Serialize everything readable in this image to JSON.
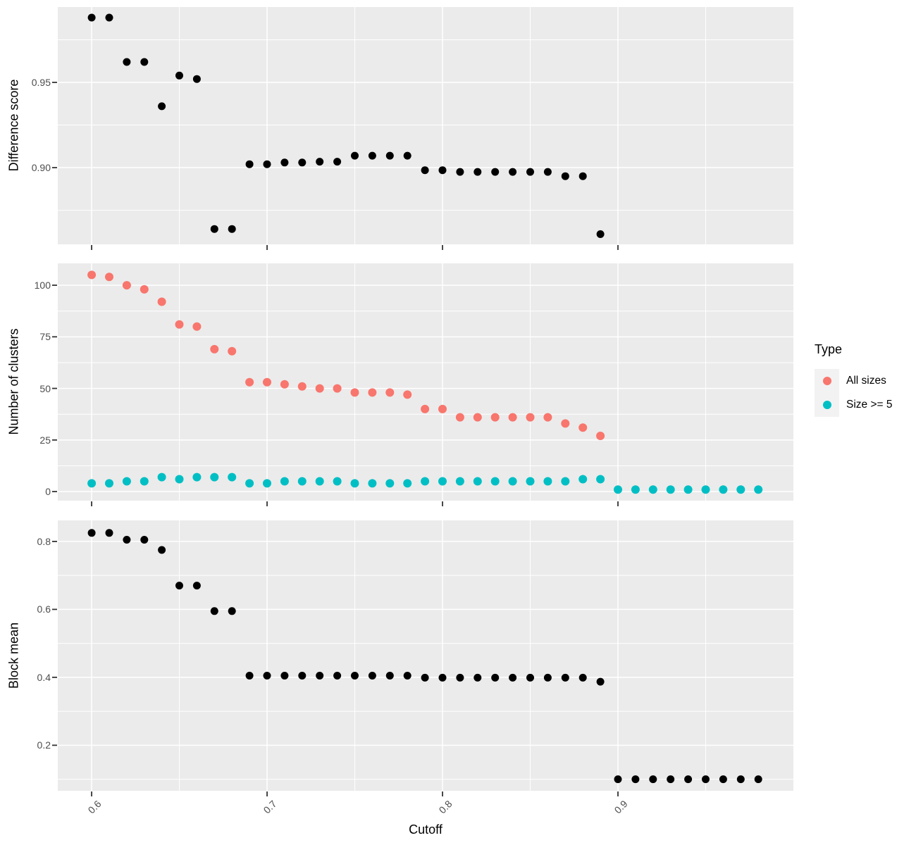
{
  "figure": {
    "xlabel": "Cutoff",
    "xlim": [
      0.5807,
      1.0
    ],
    "x_major_ticks": [
      0.6,
      0.7,
      0.8,
      0.9
    ],
    "x_tick_labels": [
      "0.6",
      "0.7",
      "0.8",
      "0.9"
    ],
    "x_minor_ticks": [
      0.65,
      0.75,
      0.85,
      0.95
    ]
  },
  "legend": {
    "title": "Type",
    "items": [
      {
        "label": "All sizes",
        "color": "#F8766D"
      },
      {
        "label": "Size >= 5",
        "color": "#00BFC4"
      }
    ]
  },
  "colors": {
    "panel_background": "#EBEBEB",
    "gridline": "#FFFFFF",
    "tick_text": "#4D4D4D",
    "axis_title": "#000000",
    "tick_mark": "#333333",
    "point_black": "#000000"
  },
  "chart_data": [
    {
      "type": "scatter",
      "panel": "top",
      "ylabel": "Difference score",
      "ylim": [
        0.855,
        0.9942
      ],
      "y_major_ticks": [
        0.9,
        0.95
      ],
      "y_tick_labels": [
        "0.90",
        "0.95"
      ],
      "y_minor_ticks": [
        0.875,
        0.925,
        0.975
      ],
      "grid": true,
      "legend_position": "none",
      "series": [
        {
          "name": "Difference score",
          "color": "#000000",
          "x": [
            0.6,
            0.61,
            0.62,
            0.63,
            0.64,
            0.65,
            0.66,
            0.67,
            0.68,
            0.69,
            0.7,
            0.71,
            0.72,
            0.73,
            0.74,
            0.75,
            0.76,
            0.77,
            0.78,
            0.79,
            0.8,
            0.81,
            0.82,
            0.83,
            0.84,
            0.85,
            0.86,
            0.87,
            0.88,
            0.89
          ],
          "y": [
            0.988,
            0.988,
            0.962,
            0.962,
            0.936,
            0.954,
            0.952,
            0.864,
            0.864,
            0.902,
            0.902,
            0.903,
            0.903,
            0.9035,
            0.9035,
            0.907,
            0.907,
            0.907,
            0.907,
            0.8985,
            0.8985,
            0.8975,
            0.8975,
            0.8975,
            0.8975,
            0.8975,
            0.8975,
            0.895,
            0.895,
            0.861
          ]
        }
      ]
    },
    {
      "type": "scatter",
      "panel": "middle",
      "ylabel": "Number of clusters",
      "ylim": [
        -4.4,
        110.6
      ],
      "y_major_ticks": [
        0,
        25,
        50,
        75,
        100
      ],
      "y_tick_labels": [
        "0",
        "25",
        "50",
        "75",
        "100"
      ],
      "y_minor_ticks": [
        12.5,
        37.5,
        62.5,
        87.5
      ],
      "grid": true,
      "legend_position": "right",
      "series": [
        {
          "name": "All sizes",
          "color": "#F8766D",
          "x": [
            0.6,
            0.61,
            0.62,
            0.63,
            0.64,
            0.65,
            0.66,
            0.67,
            0.68,
            0.69,
            0.7,
            0.71,
            0.72,
            0.73,
            0.74,
            0.75,
            0.76,
            0.77,
            0.78,
            0.79,
            0.8,
            0.81,
            0.82,
            0.83,
            0.84,
            0.85,
            0.86,
            0.87,
            0.88,
            0.89
          ],
          "y": [
            105,
            104,
            100,
            98,
            92,
            81,
            80,
            69,
            68,
            53,
            53,
            52,
            51,
            50,
            50,
            48,
            48,
            48,
            47,
            40,
            40,
            36,
            36,
            36,
            36,
            36,
            36,
            33,
            31,
            27
          ]
        },
        {
          "name": "Size >= 5",
          "color": "#00BFC4",
          "x": [
            0.6,
            0.61,
            0.62,
            0.63,
            0.64,
            0.65,
            0.66,
            0.67,
            0.68,
            0.69,
            0.7,
            0.71,
            0.72,
            0.73,
            0.74,
            0.75,
            0.76,
            0.77,
            0.78,
            0.79,
            0.8,
            0.81,
            0.82,
            0.83,
            0.84,
            0.85,
            0.86,
            0.87,
            0.88,
            0.89,
            0.9,
            0.91,
            0.92,
            0.93,
            0.94,
            0.95,
            0.96,
            0.97,
            0.98
          ],
          "y": [
            4,
            4,
            5,
            5,
            7,
            6,
            7,
            7,
            7,
            4,
            4,
            5,
            5,
            5,
            5,
            4,
            4,
            4,
            4,
            5,
            5,
            5,
            5,
            5,
            5,
            5,
            5,
            5,
            6,
            6,
            1,
            1,
            1,
            1,
            1,
            1,
            1,
            1,
            1
          ]
        }
      ]
    },
    {
      "type": "scatter",
      "panel": "bottom",
      "ylabel": "Block mean",
      "ylim": [
        0.066,
        0.862
      ],
      "y_major_ticks": [
        0.2,
        0.4,
        0.6,
        0.8
      ],
      "y_tick_labels": [
        "0.2",
        "0.4",
        "0.6",
        "0.8"
      ],
      "y_minor_ticks": [
        0.1,
        0.3,
        0.5,
        0.7
      ],
      "grid": true,
      "legend_position": "none",
      "series": [
        {
          "name": "Block mean",
          "color": "#000000",
          "x": [
            0.6,
            0.61,
            0.62,
            0.63,
            0.64,
            0.65,
            0.66,
            0.67,
            0.68,
            0.69,
            0.7,
            0.71,
            0.72,
            0.73,
            0.74,
            0.75,
            0.76,
            0.77,
            0.78,
            0.79,
            0.8,
            0.81,
            0.82,
            0.83,
            0.84,
            0.85,
            0.86,
            0.87,
            0.88,
            0.89,
            0.9,
            0.91,
            0.92,
            0.93,
            0.94,
            0.95,
            0.96,
            0.97,
            0.98
          ],
          "y": [
            0.825,
            0.825,
            0.805,
            0.805,
            0.775,
            0.67,
            0.67,
            0.595,
            0.595,
            0.405,
            0.405,
            0.405,
            0.405,
            0.405,
            0.405,
            0.405,
            0.405,
            0.405,
            0.405,
            0.399,
            0.399,
            0.399,
            0.399,
            0.399,
            0.399,
            0.399,
            0.399,
            0.399,
            0.399,
            0.387,
            0.1,
            0.1,
            0.1,
            0.1,
            0.1,
            0.1,
            0.1,
            0.1,
            0.1
          ]
        }
      ]
    }
  ]
}
